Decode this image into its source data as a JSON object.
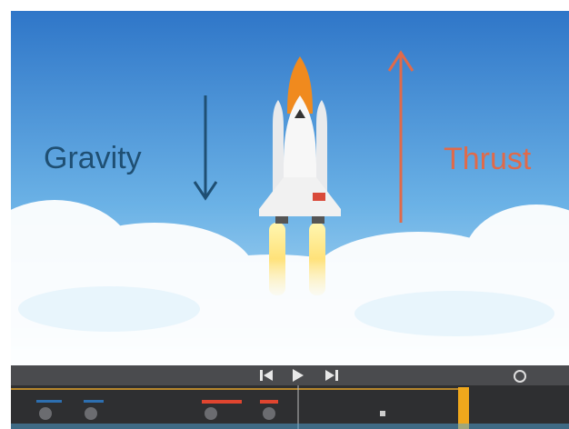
{
  "canvas": {
    "labels": {
      "gravity": "Gravity",
      "thrust": "Thrust"
    }
  }
}
